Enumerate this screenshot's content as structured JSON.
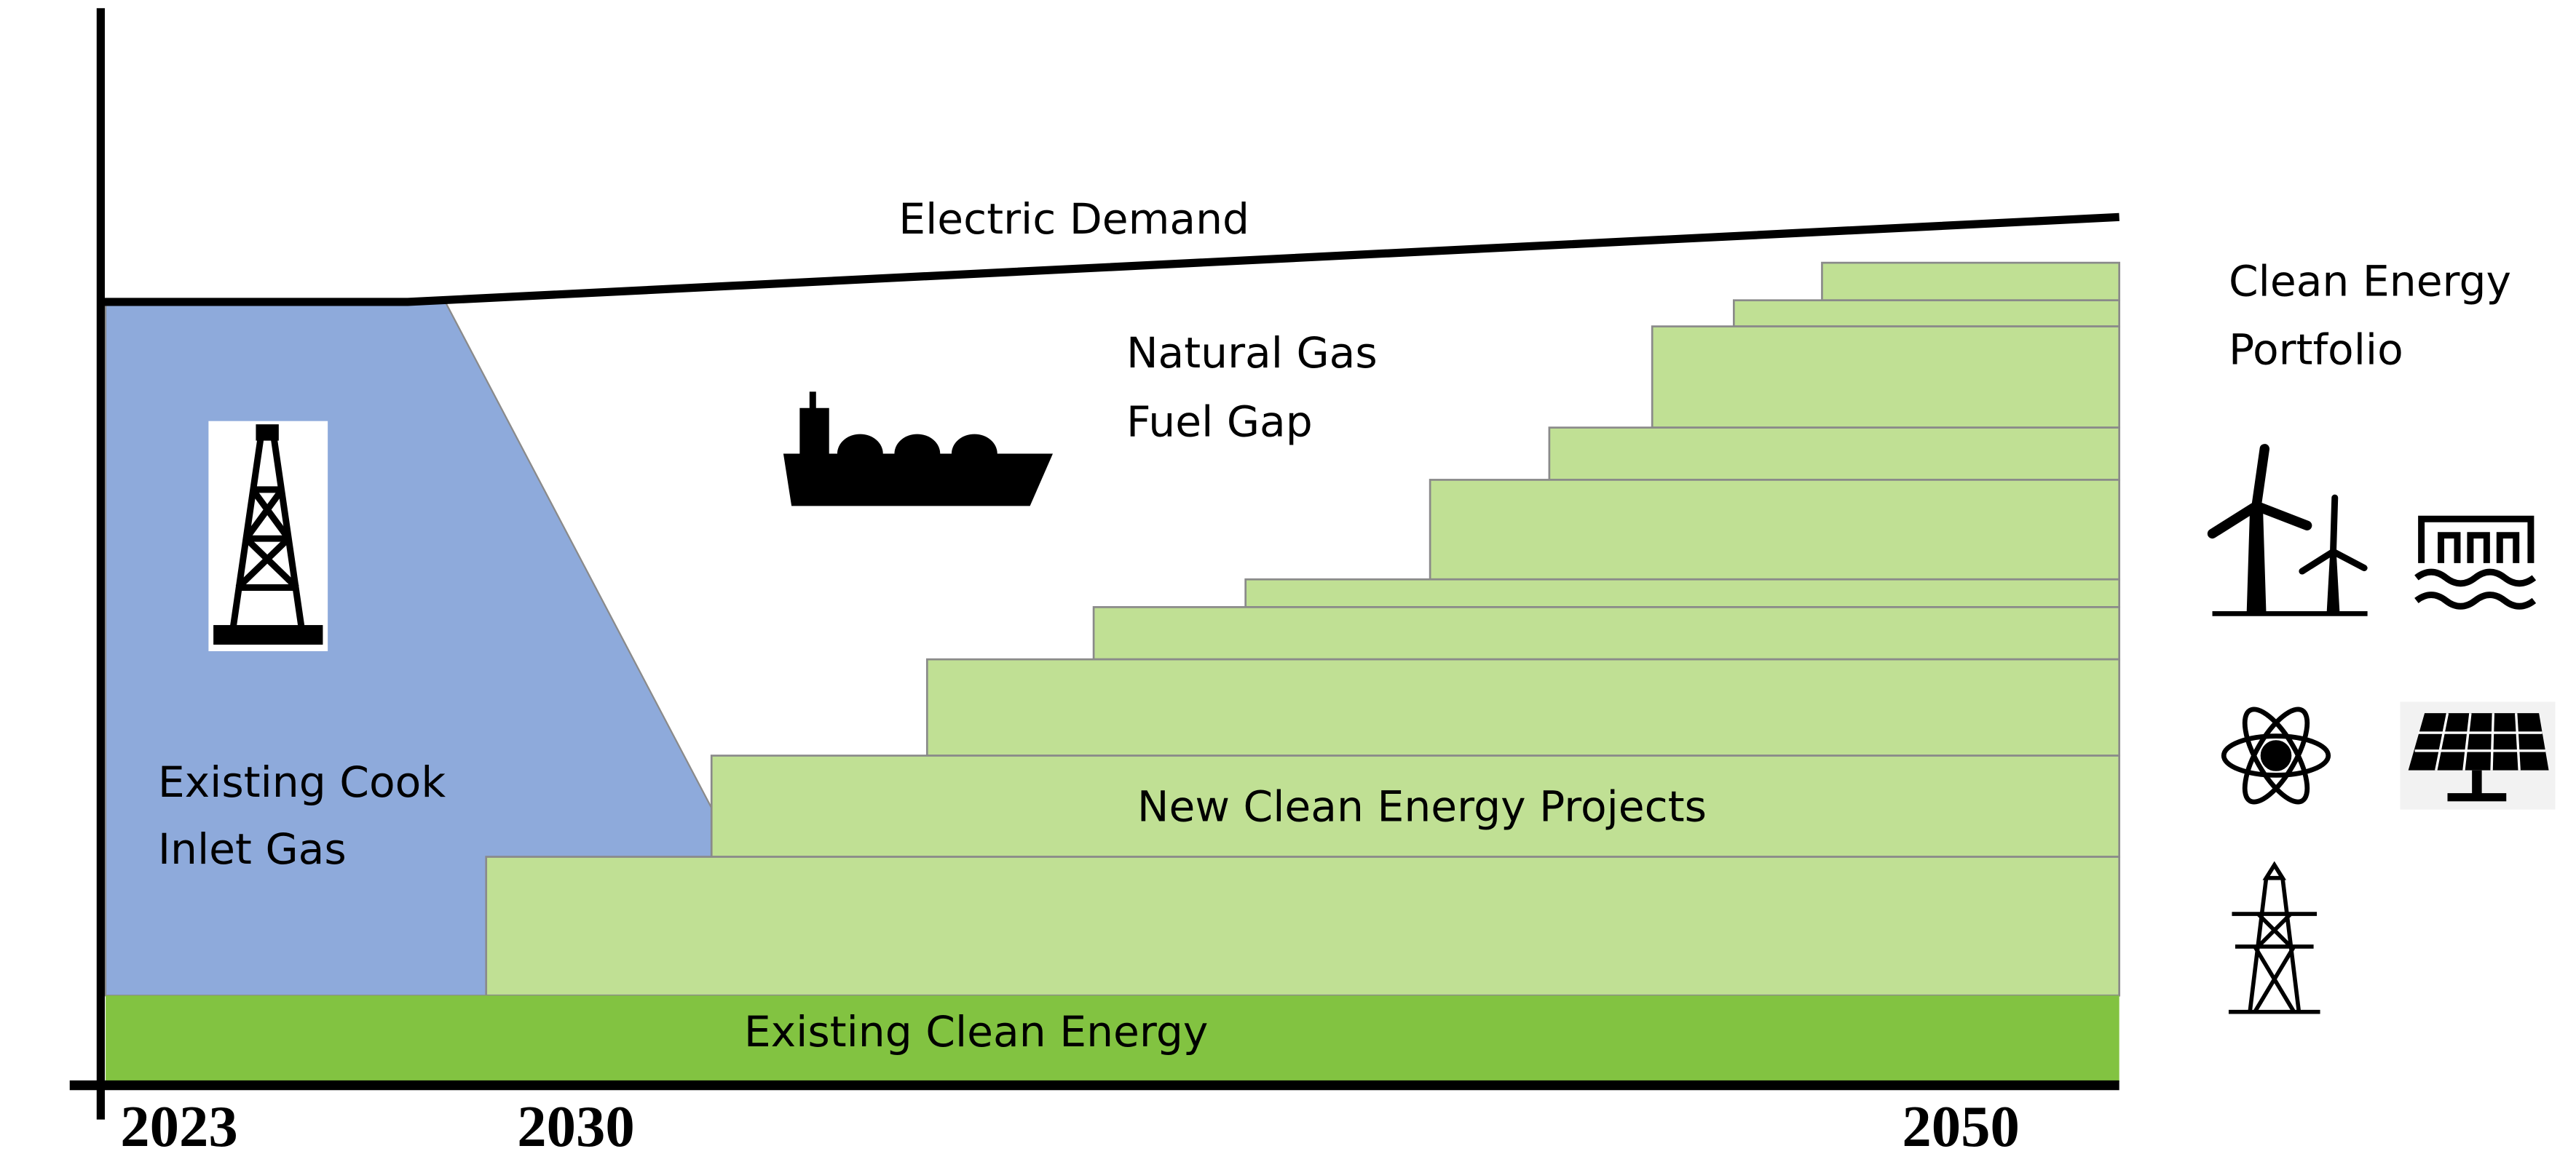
{
  "diagram": {
    "demand_label": "Electric Demand",
    "gap_label": [
      "Natural Gas",
      "Fuel Gap"
    ],
    "gas_label": [
      "Existing Cook",
      "Inlet Gas"
    ],
    "projects_label": "New Clean Energy Projects",
    "existing_clean_label": "Existing Clean Energy",
    "portfolio_label": [
      "Clean Energy",
      "Portfolio"
    ],
    "years": [
      "2023",
      "2030",
      "2050"
    ]
  }
}
